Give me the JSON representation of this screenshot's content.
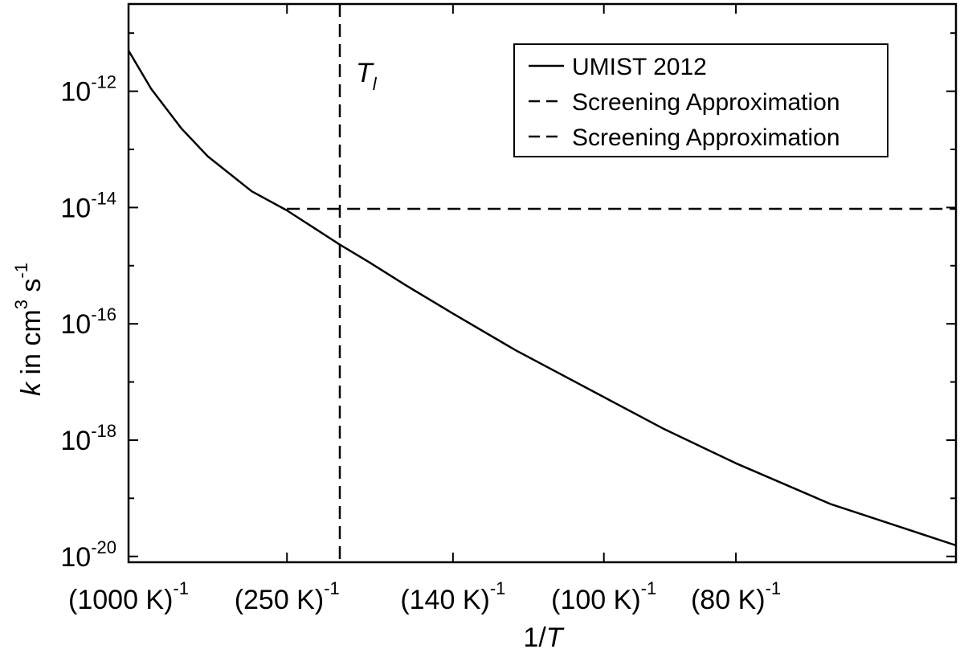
{
  "chart_data": {
    "type": "line",
    "title": "",
    "x_scale": "reciprocal temperature (1/T)",
    "y_scale": "log",
    "xlabel": {
      "main": "1/",
      "var": "T"
    },
    "ylabel": {
      "var": "k",
      "text1": " in cm",
      "sup1": "3",
      "text2": " s",
      "sup2": "-1"
    },
    "xlim_temperature_K": [
      1000,
      60
    ],
    "ylim_exponent": [
      -20.1,
      -10.5
    ],
    "x_ticks": [
      {
        "temperature_K": 1000,
        "label": "(1000 K)",
        "sup": "-1"
      },
      {
        "temperature_K": 250,
        "label": "(250 K)",
        "sup": "-1"
      },
      {
        "temperature_K": 140,
        "label": "(140 K)",
        "sup": "-1"
      },
      {
        "temperature_K": 100,
        "label": "(100 K)",
        "sup": "-1"
      },
      {
        "temperature_K": 80,
        "label": "(80 K)",
        "sup": "-1"
      }
    ],
    "y_ticks": [
      {
        "exp": -12,
        "base": "10",
        "sup": "-12"
      },
      {
        "exp": -14,
        "base": "10",
        "sup": "-14"
      },
      {
        "exp": -16,
        "base": "10",
        "sup": "-16"
      },
      {
        "exp": -18,
        "base": "10",
        "sup": "-18"
      },
      {
        "exp": -20,
        "base": "10",
        "sup": "-20"
      }
    ],
    "grid": false,
    "legend_position": "top-right",
    "series": [
      {
        "name": "UMIST 2012",
        "style": "solid",
        "color": "#000000",
        "points": [
          {
            "T": 1000,
            "k": 5e-12
          },
          {
            "T": 700,
            "k": 1.1e-12
          },
          {
            "T": 500,
            "k": 2.3e-13
          },
          {
            "T": 400,
            "k": 7.6e-14
          },
          {
            "T": 300,
            "k": 1.9e-14
          },
          {
            "T": 250,
            "k": 8.9e-15
          },
          {
            "T": 200,
            "k": 2.3e-15
          },
          {
            "T": 180,
            "k": 1.15e-15
          },
          {
            "T": 160,
            "k": 4.6e-16
          },
          {
            "T": 140,
            "k": 1.5e-16
          },
          {
            "T": 120,
            "k": 3.5e-17
          },
          {
            "T": 100,
            "k": 5.5e-18
          },
          {
            "T": 90,
            "k": 1.6e-18
          },
          {
            "T": 80,
            "k": 4e-19
          },
          {
            "T": 70,
            "k": 8e-20
          },
          {
            "T": 60,
            "k": 1.55e-20
          }
        ]
      },
      {
        "name": "Screening Approximation",
        "style": "dashed",
        "color": "#000000",
        "points": [
          {
            "T": 250,
            "k": 9.5e-15
          },
          {
            "T": 60,
            "k": 9.5e-15
          }
        ]
      },
      {
        "name": "Screening Approximation",
        "style": "dashed",
        "color": "#000000",
        "vertical_at_T": 200
      }
    ],
    "annotations": [
      {
        "text": "T",
        "subscript": "l",
        "attached_to": "vertical dashed line"
      }
    ]
  }
}
